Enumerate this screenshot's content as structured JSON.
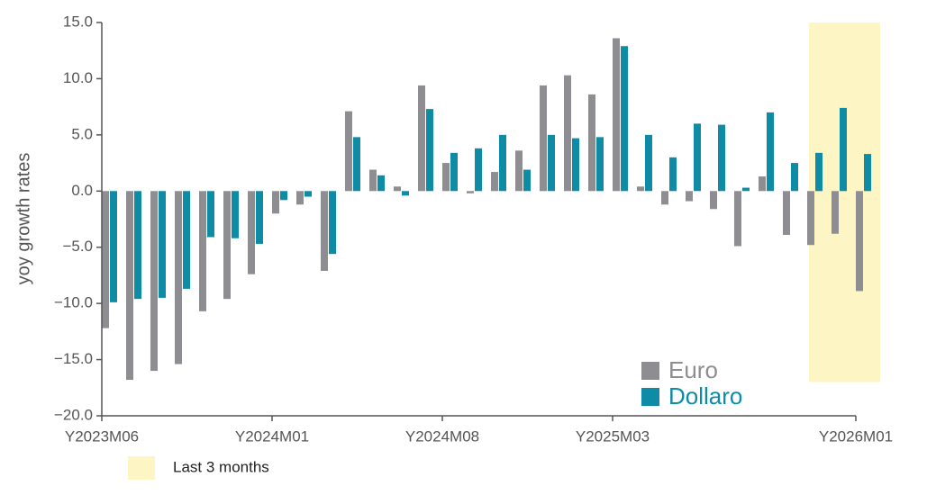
{
  "chart_data": {
    "type": "bar",
    "y_label": "yoy growth rates",
    "categories": [
      "Y2023M06",
      null,
      null,
      null,
      null,
      null,
      null,
      "Y2024M01",
      null,
      null,
      null,
      null,
      null,
      null,
      "Y2024M08",
      null,
      null,
      null,
      null,
      null,
      null,
      "Y2025M03",
      null,
      null,
      null,
      null,
      null,
      null,
      null,
      null,
      null,
      "Y2026M01"
    ],
    "series": [
      {
        "name": "Euro",
        "color": "#8e8e92",
        "values": [
          -12.2,
          -16.8,
          -16.0,
          -15.4,
          -10.7,
          -9.6,
          -7.4,
          -2.0,
          -1.2,
          -7.1,
          7.1,
          1.9,
          0.4,
          9.4,
          2.5,
          -0.2,
          1.7,
          3.6,
          9.4,
          10.3,
          8.6,
          13.6,
          0.4,
          -1.2,
          -0.9,
          -1.6,
          -4.9,
          1.3,
          -3.9,
          -4.8,
          -3.8,
          -8.9
        ]
      },
      {
        "name": "Dollaro",
        "color": "#0e8ca6",
        "values": [
          -9.9,
          -9.6,
          -9.5,
          -8.7,
          -4.1,
          -4.2,
          -4.7,
          -0.8,
          -0.5,
          -5.6,
          4.8,
          1.4,
          -0.4,
          7.3,
          3.4,
          3.8,
          5.0,
          1.9,
          5.0,
          4.7,
          4.8,
          12.9,
          5.0,
          3.0,
          6.0,
          5.9,
          0.3,
          7.0,
          2.5,
          3.4,
          7.4,
          3.3
        ]
      }
    ],
    "ylim": [
      -20,
      15
    ],
    "yticks": [
      {
        "value": -20,
        "label": "−20.0"
      },
      {
        "value": -15,
        "label": "−15.0"
      },
      {
        "value": -10,
        "label": "−10.0"
      },
      {
        "value": -5,
        "label": "−5.0"
      },
      {
        "value": 0,
        "label": "0.0"
      },
      {
        "value": 5,
        "label": "5.0"
      },
      {
        "value": 10,
        "label": "10.0"
      },
      {
        "value": 15,
        "label": "15.0"
      }
    ],
    "legend": "lower right",
    "highlight": {
      "label": "Last 3 months",
      "color": "#fdf5c3",
      "x_range": [
        29,
        31
      ],
      "y_range": [
        -17,
        15
      ]
    }
  }
}
